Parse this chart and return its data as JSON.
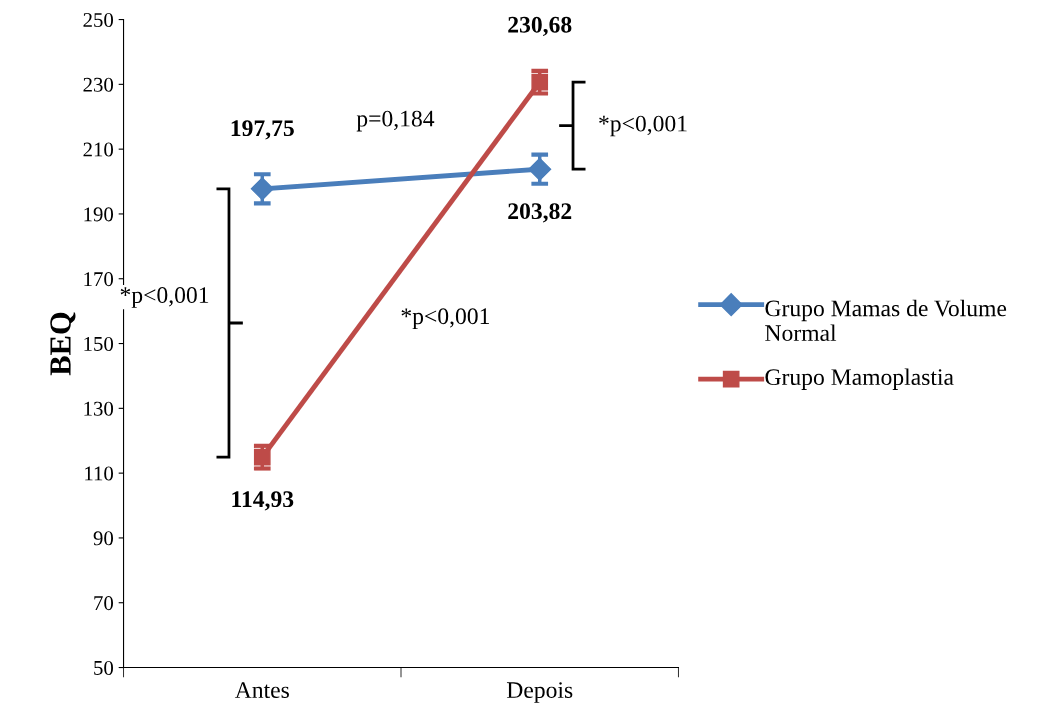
{
  "chart_data": {
    "type": "line",
    "ylabel": "BEQ",
    "categories": [
      "Antes",
      "Depois"
    ],
    "ylim": [
      50,
      250
    ],
    "yticks": [
      50,
      70,
      90,
      110,
      130,
      150,
      170,
      190,
      210,
      230,
      250
    ],
    "grid": false,
    "legend": "right",
    "series": [
      {
        "name": "Grupo Mamas de Volume Normal",
        "color": "#4a7ebb",
        "marker": "diamond",
        "values": [
          197.75,
          203.82
        ],
        "errors": [
          4.5,
          4.5
        ],
        "value_labels": [
          "197,75",
          "203,82"
        ]
      },
      {
        "name": "Grupo Mamoplastia",
        "color": "#be4b48",
        "marker": "square",
        "values": [
          114.93,
          230.68
        ],
        "errors": [
          3.5,
          3.5
        ],
        "value_labels": [
          "114,93",
          "230,68"
        ]
      }
    ],
    "annotations": [
      "p=0,184",
      "*p<0,001",
      "*p<0,001",
      "*p<0,001"
    ]
  }
}
